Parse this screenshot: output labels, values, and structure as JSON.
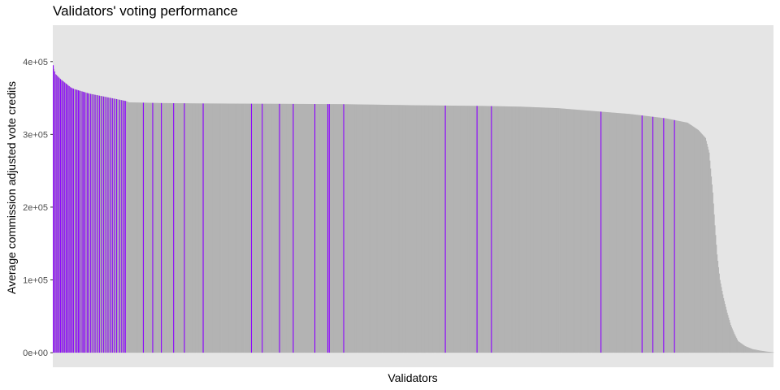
{
  "chart_data": {
    "type": "bar",
    "title": "Validators' voting performance",
    "xlabel": "Validators",
    "ylabel": "Average commission adjusted vote credits",
    "ylim": [
      -20000,
      450000
    ],
    "yticks": [
      0,
      100000,
      200000,
      300000,
      400000
    ],
    "ytick_labels": [
      "0e+00",
      "1e+05",
      "2e+05",
      "3e+05",
      "4e+05"
    ],
    "grid": false,
    "legend": "none",
    "bar_count": 1000,
    "colors": {
      "highlight": "#8b00ff",
      "default": "#b3b3b3",
      "panel": "#e5e5e5"
    },
    "sorted_profile": [
      [
        0,
        395000
      ],
      [
        1,
        390000
      ],
      [
        3,
        383000
      ],
      [
        6,
        380000
      ],
      [
        10,
        376000
      ],
      [
        15,
        372000
      ],
      [
        20,
        368000
      ],
      [
        25,
        364000
      ],
      [
        30,
        362000
      ],
      [
        40,
        359000
      ],
      [
        50,
        356000
      ],
      [
        60,
        354000
      ],
      [
        70,
        352000
      ],
      [
        80,
        350000
      ],
      [
        90,
        348000
      ],
      [
        100,
        346000
      ],
      [
        105,
        344000
      ],
      [
        150,
        343000
      ],
      [
        200,
        342500
      ],
      [
        300,
        342000
      ],
      [
        400,
        341500
      ],
      [
        500,
        340000
      ],
      [
        600,
        339000
      ],
      [
        650,
        338000
      ],
      [
        700,
        336000
      ],
      [
        750,
        332000
      ],
      [
        800,
        328000
      ],
      [
        850,
        322000
      ],
      [
        880,
        316000
      ],
      [
        895,
        306000
      ],
      [
        905,
        295000
      ],
      [
        910,
        275000
      ],
      [
        915,
        220000
      ],
      [
        918,
        175000
      ],
      [
        921,
        135000
      ],
      [
        925,
        100000
      ],
      [
        930,
        75000
      ],
      [
        935,
        55000
      ],
      [
        940,
        38000
      ],
      [
        945,
        26000
      ],
      [
        950,
        16000
      ],
      [
        960,
        9000
      ],
      [
        970,
        5000
      ],
      [
        980,
        3000
      ],
      [
        990,
        1500
      ],
      [
        999,
        500
      ]
    ],
    "highlighted_indices": [
      0,
      2,
      4,
      6,
      8,
      10,
      12,
      14,
      16,
      18,
      20,
      22,
      24,
      26,
      28,
      31,
      33,
      35,
      37,
      40,
      42,
      44,
      47,
      49,
      52,
      55,
      58,
      61,
      64,
      67,
      70,
      73,
      76,
      79,
      82,
      85,
      88,
      92,
      95,
      98,
      100,
      125,
      138,
      150,
      167,
      182,
      208,
      275,
      290,
      314,
      333,
      363,
      381,
      383,
      403,
      544,
      588,
      608,
      760,
      817,
      832,
      847,
      862
    ]
  }
}
